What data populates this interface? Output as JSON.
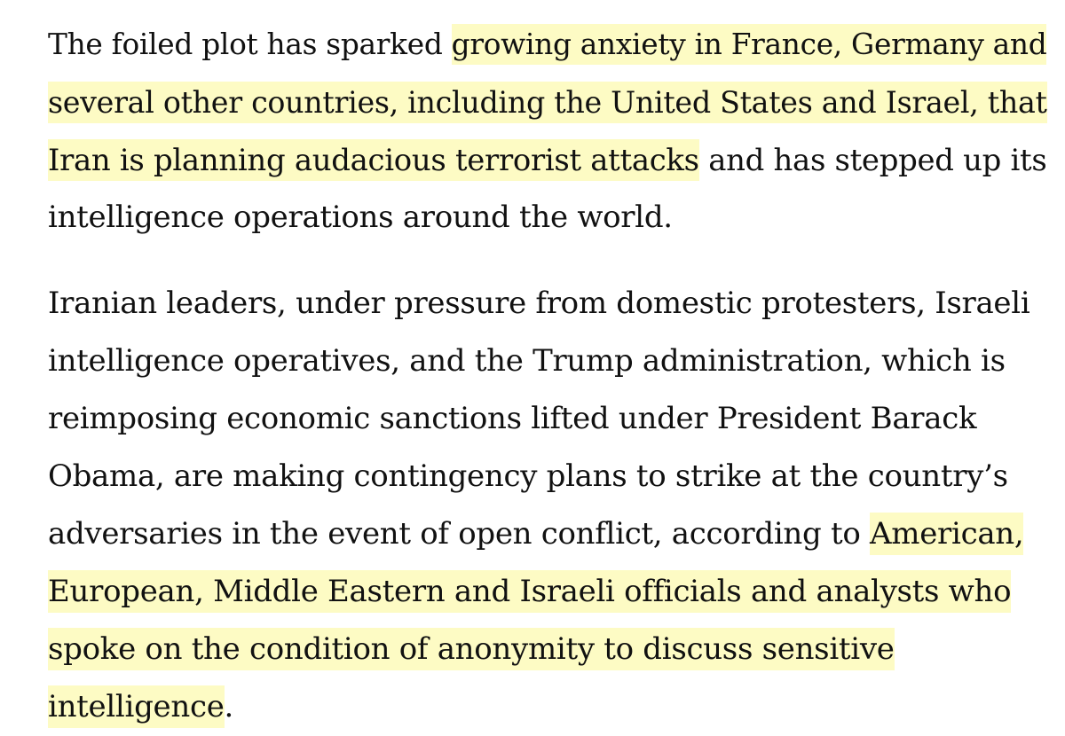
{
  "highlight_color": "#fdfbc4",
  "text_color": "#111111",
  "paragraphs": [
    {
      "lines": [
        {
          "pre": "The foiled plot has sparked ",
          "hl": "growing anxiety in France, Germany and",
          "post": ""
        },
        {
          "pre": "",
          "hl": "several other countries, including the United States and Israel, that",
          "post": ""
        },
        {
          "pre": "",
          "hl": "Iran is planning audacious terrorist attacks",
          "post": " and has stepped up its"
        },
        {
          "pre": "intelligence operations around the world.",
          "hl": "",
          "post": ""
        }
      ]
    },
    {
      "lines": [
        {
          "pre": "Iranian leaders, under pressure from domestic protesters, Israeli",
          "hl": "",
          "post": ""
        },
        {
          "pre": "intelligence operatives, and the Trump administration, which is",
          "hl": "",
          "post": ""
        },
        {
          "pre": "reimposing economic sanctions lifted under President Barack",
          "hl": "",
          "post": ""
        },
        {
          "pre": "Obama, are making contingency plans to strike at the country’s",
          "hl": "",
          "post": ""
        },
        {
          "pre": "adversaries in the event of open conflict, according to ",
          "hl": "American,",
          "post": ""
        },
        {
          "pre": "",
          "hl": "European, Middle Eastern and Israeli officials and analysts who",
          "post": ""
        },
        {
          "pre": "",
          "hl": "spoke on the condition of anonymity to discuss sensitive",
          "post": ""
        },
        {
          "pre": "",
          "hl": "intelligence",
          "post": "."
        }
      ]
    }
  ]
}
